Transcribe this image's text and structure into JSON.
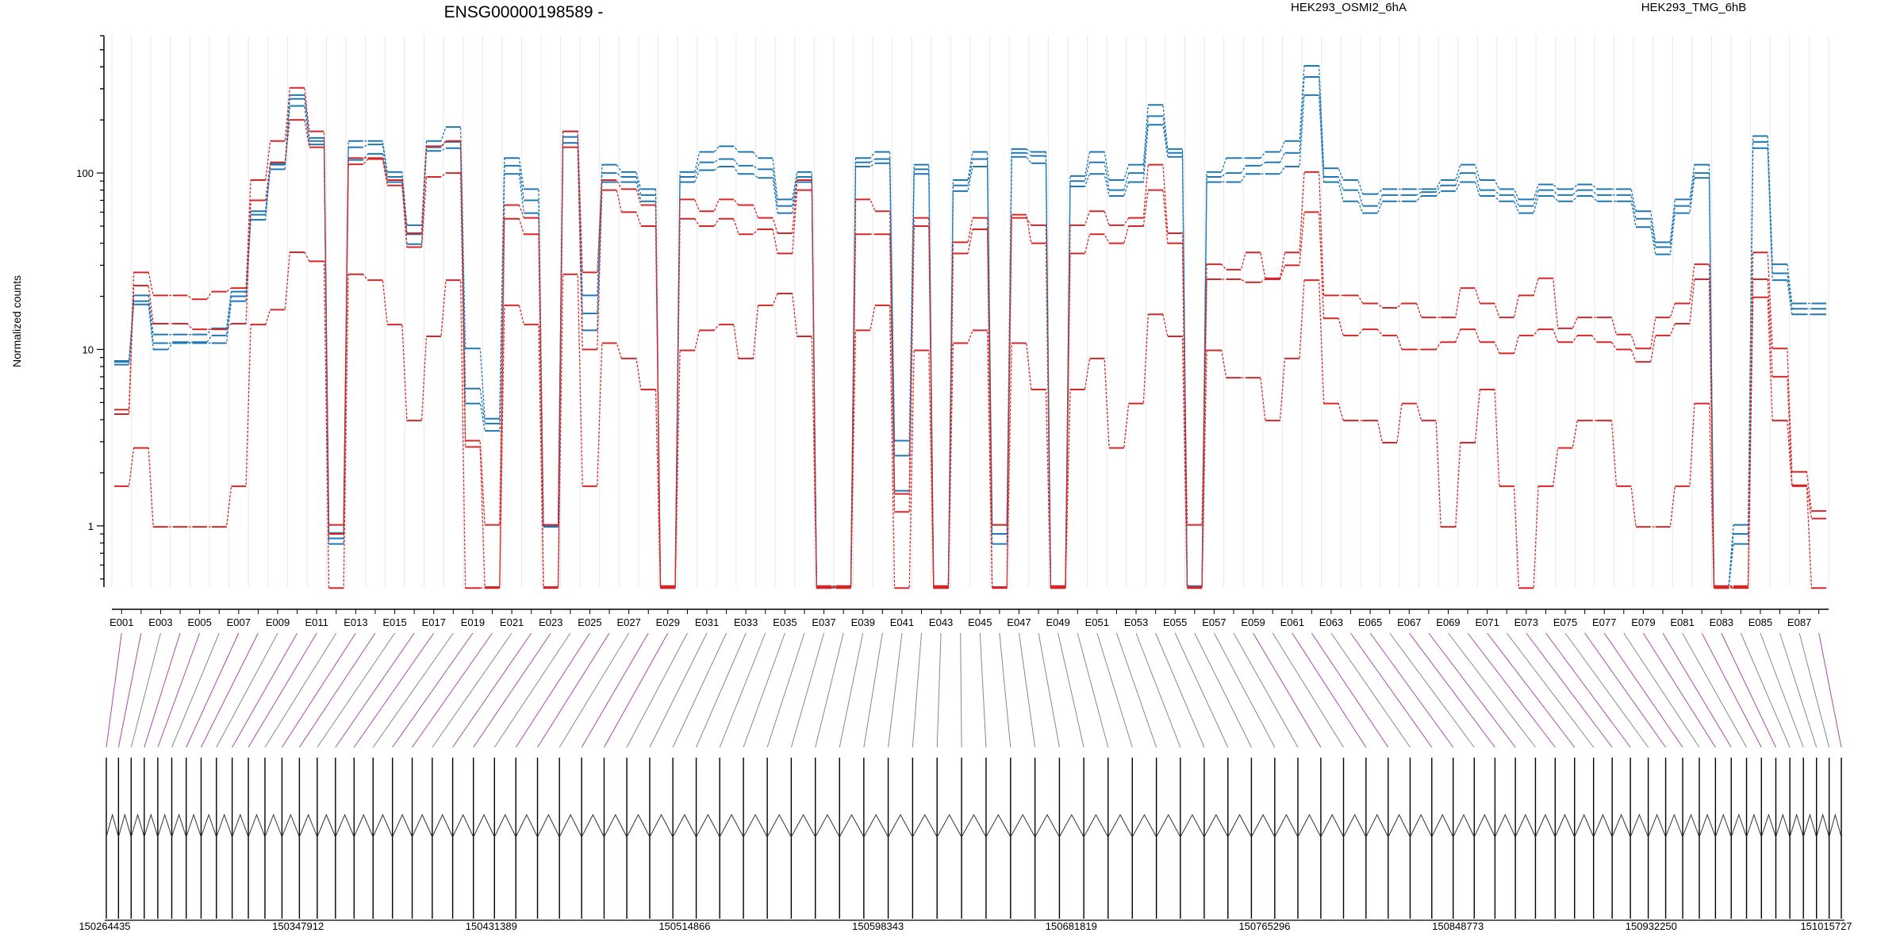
{
  "chart_data": {
    "type": "line",
    "title": "ENSG00000198589 -",
    "ylabel": "Normalized counts",
    "yscale": "log",
    "ylim": [
      0.45,
      600
    ],
    "y_ticks": [
      1,
      10,
      100
    ],
    "y_tick_labels": [
      "1",
      "10",
      "100"
    ],
    "legend_placement": "top-right",
    "legend": [
      {
        "label": "HEK293_OSMI2_6hA",
        "color": "#d62728"
      },
      {
        "label": "HEK293_TMG_6hB",
        "color": "#1f77b4"
      }
    ],
    "x_tick_labels": [
      "E001",
      "E003",
      "E005",
      "E007",
      "E009",
      "E011",
      "E013",
      "E015",
      "E017",
      "E019",
      "E021",
      "E023",
      "E025",
      "E027",
      "E029",
      "E031",
      "E033",
      "E035",
      "E037",
      "E039",
      "E041",
      "E043",
      "E045",
      "E047",
      "E049",
      "E051",
      "E053",
      "E055",
      "E057",
      "E059",
      "E061",
      "E063",
      "E065",
      "E067",
      "E069",
      "E071",
      "E073",
      "E075",
      "E077",
      "E079",
      "E081",
      "E083",
      "E085",
      "E087"
    ],
    "exon_count": 88,
    "genomic_coordinates": [
      "150264435",
      "150347912",
      "150431389",
      "150514866",
      "150598343",
      "150681819",
      "150765296",
      "150848773",
      "150932250",
      "151015727"
    ],
    "series": [
      {
        "name": "HEK293_TMG_6hB",
        "color": "#1f77b4",
        "values": [
          8.5,
          20,
          12,
          12,
          12,
          13,
          21,
          60,
          110,
          260,
          150,
          0.9,
          150,
          150,
          100,
          50,
          150,
          180,
          10,
          4,
          120,
          80,
          1,
          170,
          20,
          110,
          100,
          80,
          0.45,
          100,
          130,
          140,
          130,
          120,
          70,
          100,
          0.45,
          0.45,
          120,
          130,
          3,
          110,
          0.45,
          90,
          130,
          1,
          135,
          130,
          0.45,
          95,
          130,
          90,
          110,
          240,
          135,
          0.45,
          100,
          120,
          120,
          130,
          150,
          400,
          105,
          90,
          75,
          80,
          80,
          80,
          90,
          110,
          90,
          80,
          70,
          85,
          80,
          85,
          80,
          80,
          60,
          40,
          70,
          110,
          0.45,
          1,
          160,
          30,
          18,
          18
        ]
      },
      {
        "name": "HEK293_TMG_6hB",
        "color": "#1f77b4",
        "values": [
          8.5,
          18,
          10,
          11,
          11,
          12,
          20,
          58,
          105,
          240,
          145,
          0.85,
          140,
          145,
          95,
          45,
          140,
          150,
          6,
          3.8,
          110,
          70,
          1,
          160,
          16,
          100,
          95,
          75,
          0.45,
          95,
          115,
          120,
          110,
          105,
          65,
          95,
          0.45,
          0.45,
          115,
          120,
          2.5,
          105,
          0.45,
          85,
          120,
          0.9,
          130,
          125,
          0.45,
          90,
          115,
          80,
          100,
          210,
          130,
          0.45,
          95,
          100,
          110,
          115,
          130,
          350,
          95,
          80,
          65,
          75,
          75,
          78,
          85,
          100,
          80,
          75,
          65,
          80,
          75,
          80,
          75,
          75,
          55,
          38,
          65,
          100,
          0.45,
          0.9,
          150,
          27,
          17,
          17
        ]
      },
      {
        "name": "HEK293_TMG_6hB",
        "color": "#1f77b4",
        "values": [
          8.3,
          19,
          11,
          11,
          11,
          11,
          19,
          55,
          115,
          280,
          160,
          0.8,
          120,
          130,
          90,
          40,
          135,
          140,
          5,
          3.5,
          100,
          60,
          1,
          150,
          13,
          90,
          90,
          70,
          0.45,
          90,
          105,
          110,
          100,
          95,
          60,
          90,
          0.45,
          0.45,
          110,
          115,
          1.6,
          100,
          0.45,
          80,
          110,
          0.8,
          125,
          115,
          0.45,
          85,
          100,
          75,
          90,
          190,
          125,
          0.45,
          90,
          90,
          100,
          100,
          110,
          280,
          90,
          70,
          60,
          70,
          70,
          75,
          80,
          90,
          75,
          70,
          60,
          75,
          70,
          75,
          70,
          70,
          50,
          35,
          60,
          95,
          0.45,
          0.8,
          140,
          25,
          16,
          16
        ]
      },
      {
        "name": "HEK293_OSMI2_6hA",
        "color": "#d62728",
        "values": [
          4.5,
          27,
          20,
          20,
          19,
          21,
          22,
          90,
          150,
          300,
          170,
          1,
          120,
          120,
          90,
          45,
          140,
          150,
          3,
          1,
          65,
          55,
          1,
          170,
          27,
          90,
          80,
          65,
          0.45,
          70,
          60,
          70,
          65,
          55,
          45,
          90,
          0.45,
          0.45,
          70,
          60,
          1.5,
          55,
          0.45,
          40,
          55,
          1,
          55,
          50,
          0.45,
          50,
          60,
          50,
          55,
          110,
          45,
          1,
          30,
          28,
          35,
          25,
          35,
          100,
          20,
          20,
          18,
          17,
          18,
          15,
          15,
          22,
          18,
          15,
          20,
          25,
          13,
          15,
          15,
          12,
          10,
          15,
          18,
          30,
          0.45,
          0.45,
          35,
          10,
          2,
          1.2
        ]
      },
      {
        "name": "HEK293_OSMI2_6hA",
        "color": "#d62728",
        "values": [
          4.3,
          23,
          14,
          14,
          13,
          13,
          14,
          70,
          115,
          200,
          140,
          0.9,
          112,
          120,
          85,
          38,
          95,
          100,
          2.8,
          0.45,
          55,
          45,
          0.45,
          140,
          10,
          80,
          60,
          50,
          0.45,
          55,
          50,
          55,
          45,
          48,
          35,
          80,
          0.45,
          0.45,
          45,
          45,
          1.2,
          50,
          0.45,
          35,
          48,
          0.45,
          58,
          40,
          0.45,
          35,
          45,
          40,
          50,
          80,
          40,
          0.45,
          25,
          25,
          24,
          25,
          30,
          60,
          15,
          12,
          13,
          12,
          10,
          10,
          11,
          13,
          11,
          9.5,
          12,
          13,
          11,
          12,
          11,
          10,
          8.5,
          12,
          14,
          25,
          0.45,
          0.45,
          25,
          7,
          1.7,
          1.1
        ]
      },
      {
        "name": "HEK293_OSMI2_6hA",
        "color": "#d62728",
        "values": [
          1.7,
          2.8,
          1,
          1,
          1,
          1,
          1.7,
          14,
          17,
          36,
          32,
          0.45,
          27,
          25,
          14,
          4,
          12,
          25,
          0.45,
          0.45,
          18,
          14,
          0.45,
          27,
          1.7,
          11,
          9,
          6,
          0.45,
          10,
          13,
          14,
          9,
          18,
          21,
          12,
          0.45,
          0.45,
          13,
          18,
          0.45,
          10,
          0.45,
          11,
          13,
          0.45,
          11,
          6,
          0.45,
          6,
          9,
          2.8,
          5,
          16,
          12,
          0.45,
          10,
          7,
          7,
          4,
          9,
          25,
          5,
          4,
          4,
          3,
          5,
          4,
          1,
          3,
          6,
          1.7,
          0.45,
          1.7,
          2.8,
          4,
          4,
          1.7,
          1,
          1,
          1.7,
          5,
          0.45,
          0.45,
          20,
          4,
          1.7,
          0.45
        ]
      }
    ]
  }
}
